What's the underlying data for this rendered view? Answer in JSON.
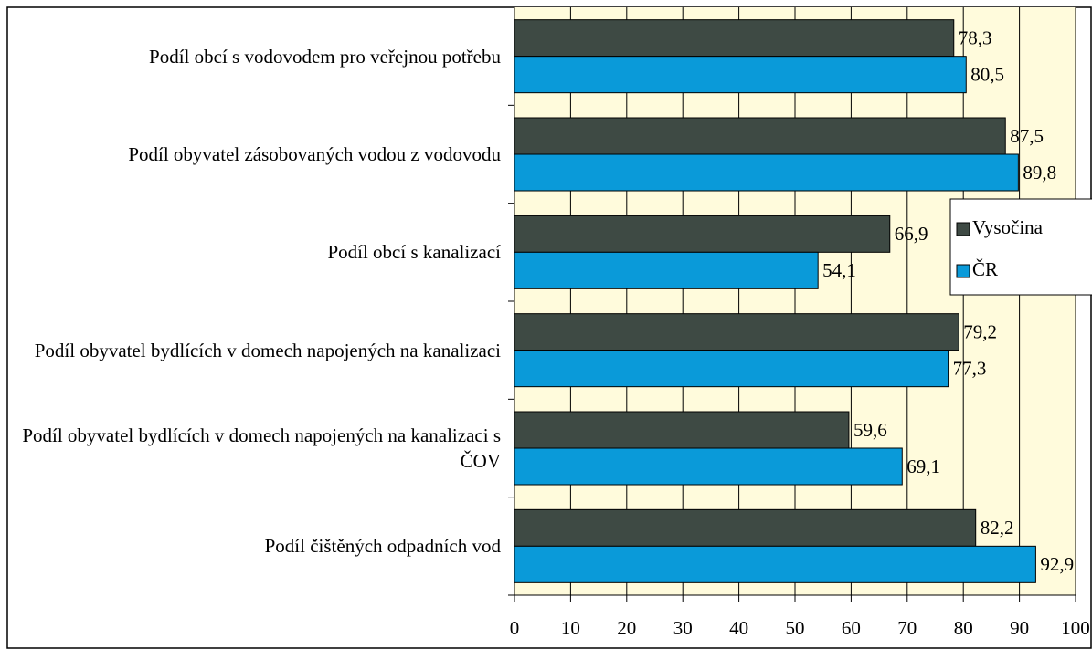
{
  "chart_data": {
    "type": "hbar",
    "categories": [
      "Podíl obcí s vodovodem pro veřejnou potřebu",
      "Podíl obyvatel zásobovaných vodou z vodovodu",
      "Podíl obcí s kanalizací",
      "Podíl obyvatel bydlících v domech napojených na kanalizaci",
      "Podíl obyvatel bydlících v domech napojených na kanalizaci s ČOV",
      "Podíl čištěných odpadních vod"
    ],
    "series": [
      {
        "name": "Vysočina",
        "color": "#3e4a44",
        "values": [
          78.3,
          87.5,
          66.9,
          79.2,
          59.6,
          82.2
        ],
        "value_labels": [
          "78,3",
          "87,5",
          "66,9",
          "79,2",
          "59,6",
          "82,2"
        ]
      },
      {
        "name": "ČR",
        "color": "#0a9ad9",
        "values": [
          80.5,
          89.8,
          54.1,
          77.3,
          69.1,
          92.9
        ],
        "value_labels": [
          "80,5",
          "89,8",
          "54,1",
          "77,3",
          "69,1",
          "92,9"
        ]
      }
    ],
    "xlim": [
      0,
      100
    ],
    "xticks": [
      0,
      10,
      20,
      30,
      40,
      50,
      60,
      70,
      80,
      90,
      100
    ],
    "grid": true,
    "legend": "right"
  }
}
